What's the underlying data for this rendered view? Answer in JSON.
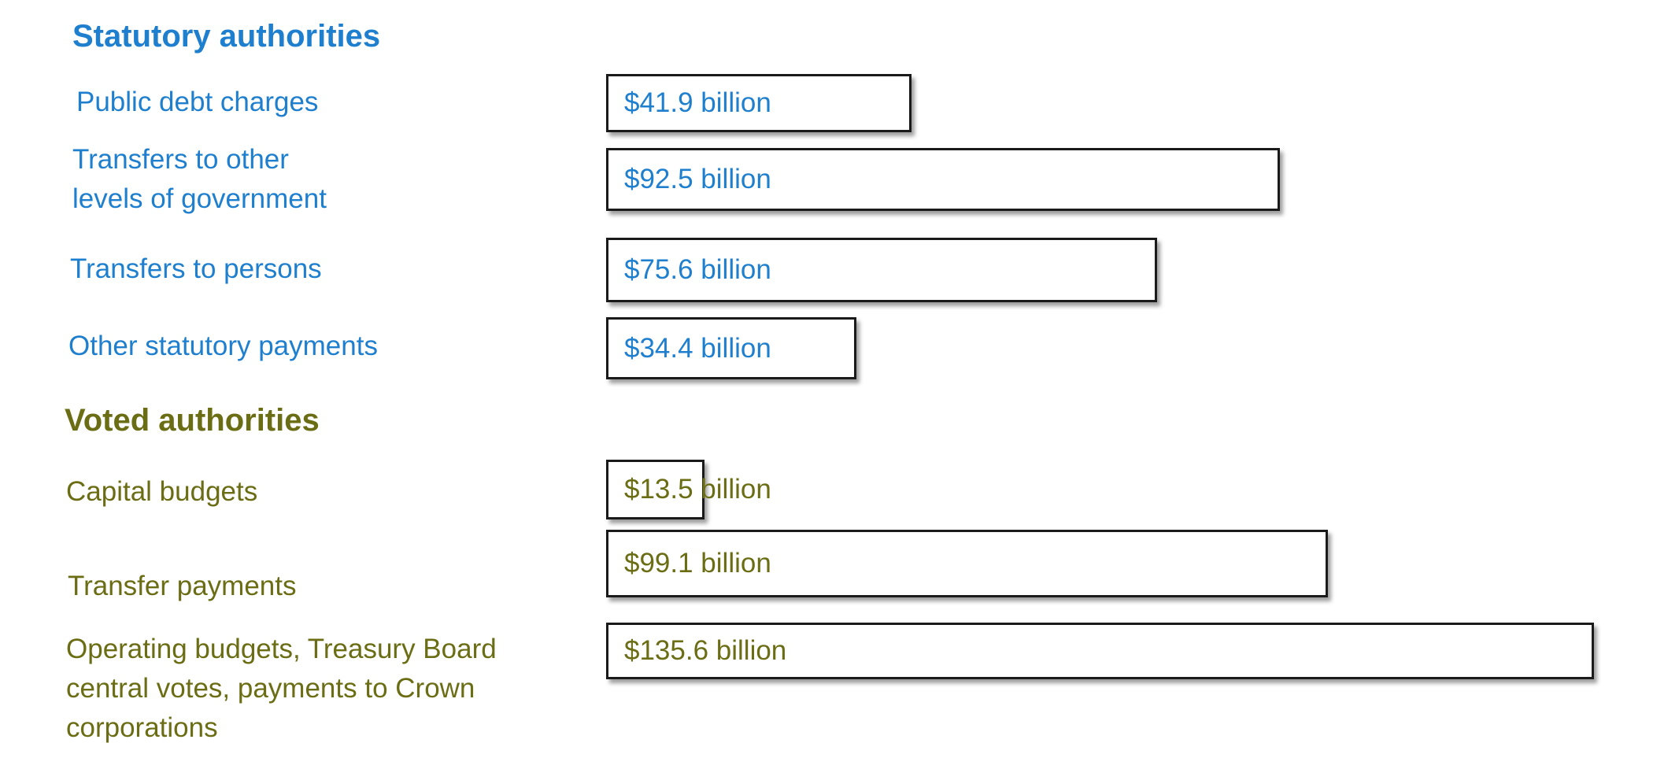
{
  "colors": {
    "statutory": "#1f7fcf",
    "voted": "#6b6d14",
    "bar_border": "#1a1a1a",
    "bar_fill": "#ffffff"
  },
  "chart_data": {
    "type": "bar",
    "orientation": "horizontal",
    "unit": "billion",
    "grid": false,
    "groups": [
      {
        "heading": "Statutory authorities",
        "color": "#1f7fcf",
        "items": [
          {
            "label_lines": [
              "Public debt charges"
            ],
            "value": 41.9,
            "value_label": "$41.9 billion"
          },
          {
            "label_lines": [
              "Transfers to other",
              "levels of government"
            ],
            "value": 92.5,
            "value_label": "$92.5 billion"
          },
          {
            "label_lines": [
              "Transfers to persons"
            ],
            "value": 75.6,
            "value_label": "$75.6 billion"
          },
          {
            "label_lines": [
              "Other statutory payments"
            ],
            "value": 34.4,
            "value_label": "$34.4 billion"
          }
        ]
      },
      {
        "heading": "Voted authorities",
        "color": "#6b6d14",
        "items": [
          {
            "label_lines": [
              "Capital budgets"
            ],
            "value": 13.5,
            "value_label": "$13.5 billion"
          },
          {
            "label_lines": [
              "Transfer payments"
            ],
            "value": 99.1,
            "value_label": "$99.1 billion"
          },
          {
            "label_lines": [
              "Operating budgets, Treasury Board",
              "central votes, payments to Crown",
              "corporations"
            ],
            "value": 135.6,
            "value_label": "$135.6 billion"
          }
        ]
      }
    ]
  }
}
